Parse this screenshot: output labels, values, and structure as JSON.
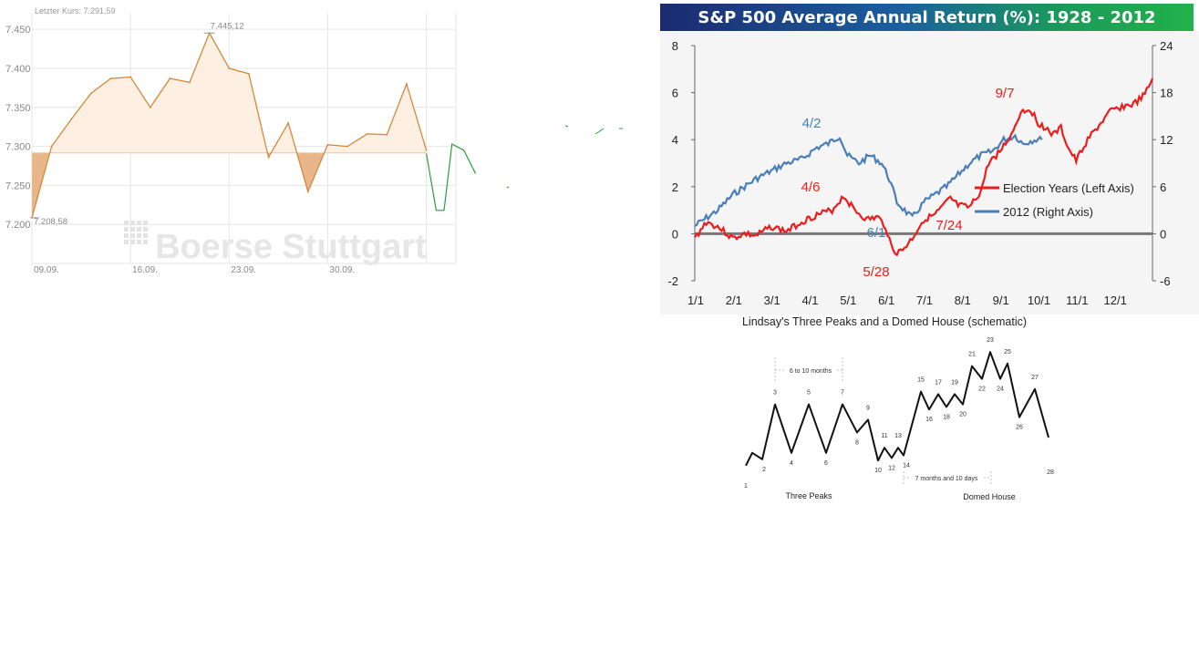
{
  "chart_data": [
    {
      "type": "area",
      "title": "Letzter Kurs: 7.291,59",
      "watermark": "Boerse Stuttgart",
      "baseline": 7291.59,
      "ylim": [
        7150,
        7470
      ],
      "yticks": [
        {
          "value": 7200,
          "label": "7.200"
        },
        {
          "value": 7250,
          "label": "7.250"
        },
        {
          "value": 7300,
          "label": "7.300"
        },
        {
          "value": 7350,
          "label": "7.350"
        },
        {
          "value": 7400,
          "label": "7.400"
        },
        {
          "value": 7450,
          "label": "7.450"
        }
      ],
      "xlim": [
        0,
        21.5
      ],
      "xticks": [
        {
          "index": 0,
          "label": "09.09."
        },
        {
          "index": 5,
          "label": "16.09."
        },
        {
          "index": 10,
          "label": "23.09."
        },
        {
          "index": 15,
          "label": "30.09."
        }
      ],
      "series": [
        {
          "name": "Kurs",
          "color": "#d4883a",
          "x": [
            0,
            1,
            2,
            3,
            4,
            5,
            6,
            7,
            8,
            9,
            10,
            11,
            12,
            13,
            14,
            15,
            16,
            17,
            18,
            19,
            20
          ],
          "values": [
            7208.58,
            7300,
            7335,
            7368,
            7387,
            7389,
            7350,
            7387,
            7382,
            7445.12,
            7400,
            7393,
            7286,
            7330,
            7242,
            7302,
            7300,
            7316,
            7315,
            7380,
            7295
          ]
        },
        {
          "name": "Intraday",
          "color": "#2e9a3e",
          "x": [
            20,
            20.5,
            20.9,
            21.3,
            21.9,
            22.5
          ],
          "values": [
            7291,
            7218,
            7218,
            7303,
            7295,
            7265
          ]
        }
      ],
      "annotations": [
        {
          "label": "7.445,12",
          "x": 9,
          "y": 7445.12
        },
        {
          "label": "7.208,58",
          "x": 0,
          "y": 7208.58
        }
      ]
    },
    {
      "type": "line",
      "title": "S&P 500 Average Annual Return (%): 1928 - 2012",
      "ylim_left": [
        -2,
        8
      ],
      "ylim_right": [
        -6,
        24
      ],
      "yticks_left": [
        "-2",
        "0",
        "2",
        "4",
        "6",
        "8"
      ],
      "yticks_right": [
        "-6",
        "0",
        "6",
        "12",
        "18",
        "24"
      ],
      "xlim": [
        0,
        12
      ],
      "xticks": [
        "1/1",
        "2/1",
        "3/1",
        "4/1",
        "5/1",
        "6/1",
        "7/1",
        "8/1",
        "9/1",
        "10/1",
        "11/1",
        "12/1"
      ],
      "legend": {
        "placement": "right",
        "items": [
          {
            "name": "Election Years (Left Axis)",
            "color": "#ee1c1c"
          },
          {
            "name": "2012 (Right Axis)",
            "color": "#4a7ebb"
          }
        ]
      },
      "series": [
        {
          "name": "Election Years (Left Axis)",
          "color": "#ee1c1c",
          "axis": "left",
          "x": [
            0,
            0.3,
            0.6,
            1,
            1.3,
            1.6,
            2,
            2.4,
            2.8,
            3.2,
            3.6,
            3.9,
            4.2,
            4.5,
            4.8,
            5.0,
            5.15,
            5.3,
            5.5,
            5.7,
            6.0,
            6.3,
            6.7,
            6.9,
            7.2,
            7.5,
            7.7,
            8.0,
            8.3,
            8.55,
            8.8,
            9.0,
            9.2,
            9.4,
            9.6,
            9.8,
            10.0,
            10.3,
            10.6,
            10.9,
            11.2,
            11.5,
            11.8,
            12.0
          ],
          "values": [
            -0.2,
            0.5,
            0.3,
            -0.2,
            0,
            -0.1,
            0.3,
            0.1,
            0.5,
            0.8,
            1.0,
            1.6,
            1.0,
            0.6,
            0.7,
            0.3,
            -0.5,
            -0.85,
            -0.6,
            -0.2,
            0.6,
            0.8,
            1.5,
            1.2,
            1.1,
            1.8,
            3.0,
            3.5,
            4.2,
            5.2,
            5.3,
            4.7,
            4.5,
            4.2,
            4.5,
            3.6,
            3.1,
            4.0,
            4.6,
            5.2,
            5.4,
            5.5,
            5.9,
            6.6
          ]
        },
        {
          "name": "2012 (Right Axis)",
          "color": "#4a7ebb",
          "axis": "right",
          "x": [
            0,
            0.3,
            0.6,
            1,
            1.3,
            1.6,
            2,
            2.4,
            2.8,
            3.2,
            3.5,
            3.8,
            4.0,
            4.3,
            4.6,
            4.9,
            5.1,
            5.3,
            5.5,
            5.7,
            6.0,
            6.3,
            6.6,
            6.9,
            7.2,
            7.5,
            7.8,
            8.1,
            8.4,
            8.6,
            8.9,
            9.1
          ],
          "values": [
            1,
            2,
            3,
            5,
            6,
            7,
            8,
            9,
            9.5,
            11,
            11.5,
            12.5,
            10,
            9,
            10,
            9,
            7,
            4,
            3,
            2,
            4,
            5,
            6,
            7.5,
            9,
            10,
            10.5,
            12,
            12.5,
            11.5,
            12,
            12
          ]
        }
      ],
      "annotations": [
        {
          "label": "4/2",
          "color": "#4a7ebb"
        },
        {
          "label": "4/6",
          "color": "#ee1c1c"
        },
        {
          "label": "6/1",
          "color": "#4a7ebb"
        },
        {
          "label": "5/28",
          "color": "#ee1c1c"
        },
        {
          "label": "7/24",
          "color": "#ee1c1c"
        },
        {
          "label": "9/7",
          "color": "#ee1c1c"
        }
      ]
    },
    {
      "type": "line",
      "title": "Lindsay's Three Peaks and a Domed House (schematic)",
      "ylim": [
        0,
        100
      ],
      "points": [
        {
          "n": "1",
          "v": 8
        },
        {
          "n": "",
          "v": 18
        },
        {
          "n": "2",
          "v": 13
        },
        {
          "n": "3",
          "v": 56
        },
        {
          "n": "4",
          "v": 18
        },
        {
          "n": "5",
          "v": 56
        },
        {
          "n": "6",
          "v": 18
        },
        {
          "n": "7",
          "v": 56
        },
        {
          "n": "8",
          "v": 34
        },
        {
          "n": "9",
          "v": 44
        },
        {
          "n": "10",
          "v": 12
        },
        {
          "n": "11",
          "v": 22
        },
        {
          "n": "12",
          "v": 14
        },
        {
          "n": "13",
          "v": 22
        },
        {
          "n": "14",
          "v": 16
        },
        {
          "n": "15",
          "v": 66
        },
        {
          "n": "16",
          "v": 52
        },
        {
          "n": "17",
          "v": 64
        },
        {
          "n": "18",
          "v": 54
        },
        {
          "n": "19",
          "v": 64
        },
        {
          "n": "20",
          "v": 56
        },
        {
          "n": "21",
          "v": 86
        },
        {
          "n": "22",
          "v": 76
        },
        {
          "n": "23",
          "v": 97
        },
        {
          "n": "24",
          "v": 76
        },
        {
          "n": "25",
          "v": 88
        },
        {
          "n": "26",
          "v": 46
        },
        {
          "n": "27",
          "v": 68
        },
        {
          "n": "28",
          "v": 30
        }
      ],
      "labels": {
        "interval1": "6 to 10 months",
        "interval2": "7 months and 10 days",
        "section1": "Three Peaks",
        "section2": "Domed House"
      }
    }
  ]
}
